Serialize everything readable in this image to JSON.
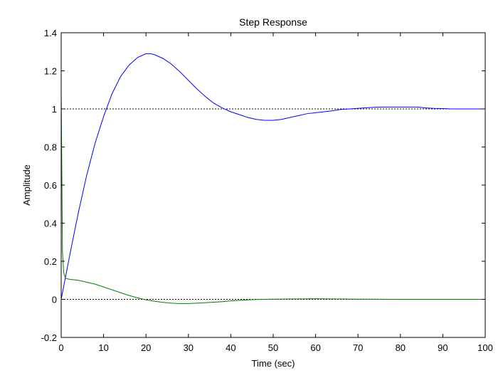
{
  "chart_data": {
    "type": "line",
    "title": "Step Response",
    "xlabel": "Time (sec)",
    "ylabel": "Amplitude",
    "xlim": [
      0,
      100
    ],
    "ylim": [
      -0.2,
      1.4
    ],
    "x_ticks": [
      0,
      10,
      20,
      30,
      40,
      50,
      60,
      70,
      80,
      90,
      100
    ],
    "y_ticks": [
      -0.2,
      0,
      0.2,
      0.4,
      0.6,
      0.8,
      1,
      1.2,
      1.4
    ],
    "x_tick_labels": [
      "0",
      "10",
      "20",
      "30",
      "40",
      "50",
      "60",
      "70",
      "80",
      "90",
      "100"
    ],
    "y_tick_labels": [
      "-0.2",
      "0",
      "0.2",
      "0.4",
      "0.6",
      "0.8",
      "1",
      "1.2",
      "1.4"
    ],
    "grid": false,
    "reference_lines": [
      {
        "y": 1,
        "style": "dotted",
        "color": "#000000"
      },
      {
        "y": 0,
        "style": "dotted",
        "color": "#000000"
      }
    ],
    "series": [
      {
        "color": "#0000ff",
        "x": [
          0,
          2,
          4,
          6,
          8,
          10,
          12,
          14,
          16,
          18,
          20,
          21,
          22,
          24,
          26,
          28,
          30,
          32,
          34,
          36,
          38,
          40,
          42,
          44,
          46,
          48,
          50,
          52,
          54,
          56,
          58,
          60,
          62,
          64,
          66,
          68,
          70,
          72,
          74,
          76,
          78,
          80,
          82,
          84,
          86,
          88,
          90,
          92,
          95,
          100
        ],
        "y": [
          0,
          0.23,
          0.45,
          0.65,
          0.82,
          0.96,
          1.08,
          1.17,
          1.23,
          1.27,
          1.29,
          1.29,
          1.285,
          1.265,
          1.235,
          1.195,
          1.15,
          1.105,
          1.065,
          1.03,
          1.005,
          0.985,
          0.97,
          0.955,
          0.945,
          0.94,
          0.94,
          0.945,
          0.955,
          0.965,
          0.975,
          0.98,
          0.985,
          0.99,
          0.997,
          1.0,
          1.003,
          1.006,
          1.009,
          1.01,
          1.01,
          1.01,
          1.01,
          1.01,
          1.005,
          1.003,
          1.002,
          1.0,
          1.0,
          1.0
        ]
      },
      {
        "color": "#008000",
        "x": [
          0,
          0.3,
          0.6,
          1,
          2,
          4,
          6,
          8,
          10,
          12,
          14,
          16,
          18,
          20,
          22,
          24,
          26,
          28,
          30,
          32,
          34,
          36,
          38,
          40,
          42,
          44,
          46,
          48,
          50,
          55,
          60,
          65,
          70,
          80,
          90,
          100
        ],
        "y": [
          1.1,
          0.25,
          0.14,
          0.11,
          0.105,
          0.1,
          0.09,
          0.08,
          0.065,
          0.05,
          0.035,
          0.02,
          0.008,
          -0.003,
          -0.01,
          -0.016,
          -0.02,
          -0.022,
          -0.022,
          -0.02,
          -0.018,
          -0.015,
          -0.012,
          -0.008,
          -0.005,
          -0.003,
          -0.001,
          0.0,
          0.001,
          0.002,
          0.003,
          0.002,
          0.001,
          0.0,
          0.0,
          0.0
        ]
      }
    ]
  }
}
